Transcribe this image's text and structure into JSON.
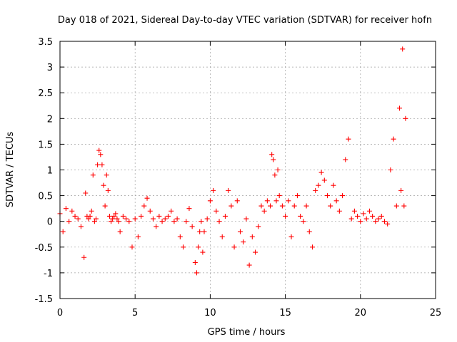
{
  "chart_data": {
    "type": "scatter",
    "title": "Day 018 of 2021, Sidereal Day-to-day VTEC variation (SDTVAR) for receiver hofn",
    "xlabel": "GPS time / hours",
    "ylabel": "SDTVAR / TECUs",
    "xlim": [
      0,
      25
    ],
    "ylim": [
      -1.5,
      3.5
    ],
    "xticks": [
      0,
      5,
      10,
      15,
      20,
      25
    ],
    "xtick_labels": [
      "0",
      "5",
      "10",
      "15",
      "20",
      "25"
    ],
    "yticks": [
      -1.5,
      -1,
      -0.5,
      0,
      0.5,
      1,
      1.5,
      2,
      2.5,
      3,
      3.5
    ],
    "ytick_labels": [
      "-1.5",
      "-1",
      "-0.5",
      "0",
      "0.5",
      "1",
      "1.5",
      "2",
      "2.5",
      "3",
      "3.5"
    ],
    "grid": true,
    "marker": "+",
    "color": "#ff0000",
    "series": [
      {
        "name": "SDTVAR",
        "x": [
          0.0,
          0.2,
          0.4,
          0.6,
          0.8,
          1.0,
          1.2,
          1.4,
          1.6,
          1.7,
          1.8,
          1.9,
          2.0,
          2.1,
          2.2,
          2.3,
          2.4,
          2.5,
          2.6,
          2.7,
          2.8,
          2.9,
          3.0,
          3.1,
          3.2,
          3.3,
          3.4,
          3.5,
          3.6,
          3.7,
          3.8,
          3.9,
          4.0,
          4.2,
          4.4,
          4.6,
          4.8,
          5.0,
          5.2,
          5.4,
          5.6,
          5.8,
          6.0,
          6.2,
          6.4,
          6.6,
          6.8,
          7.0,
          7.2,
          7.4,
          7.6,
          7.8,
          8.0,
          8.2,
          8.4,
          8.6,
          8.8,
          9.0,
          9.1,
          9.2,
          9.3,
          9.4,
          9.5,
          9.6,
          9.8,
          10.0,
          10.2,
          10.4,
          10.6,
          10.8,
          11.0,
          11.2,
          11.4,
          11.6,
          11.8,
          12.0,
          12.2,
          12.4,
          12.6,
          12.8,
          13.0,
          13.2,
          13.4,
          13.6,
          13.8,
          14.0,
          14.1,
          14.2,
          14.3,
          14.4,
          14.5,
          14.6,
          14.8,
          15.0,
          15.2,
          15.4,
          15.6,
          15.8,
          16.0,
          16.2,
          16.4,
          16.6,
          16.8,
          17.0,
          17.2,
          17.4,
          17.6,
          17.8,
          18.0,
          18.2,
          18.4,
          18.6,
          18.8,
          19.0,
          19.2,
          19.4,
          19.6,
          19.8,
          20.0,
          20.2,
          20.4,
          20.6,
          20.8,
          21.0,
          21.2,
          21.4,
          21.6,
          21.8,
          22.0,
          22.2,
          22.4,
          22.6,
          22.7,
          22.8,
          22.9,
          23.0
        ],
        "y": [
          0.15,
          -0.2,
          0.25,
          0.0,
          0.2,
          0.1,
          0.05,
          -0.1,
          -0.7,
          0.55,
          0.1,
          0.05,
          0.1,
          0.2,
          0.9,
          0.0,
          0.05,
          1.1,
          1.38,
          1.3,
          1.1,
          0.7,
          0.3,
          0.9,
          0.6,
          0.1,
          0.0,
          0.05,
          0.1,
          0.15,
          0.05,
          0.0,
          -0.2,
          0.1,
          0.05,
          0.0,
          -0.5,
          0.05,
          -0.3,
          0.1,
          0.3,
          0.45,
          0.2,
          0.05,
          -0.1,
          0.1,
          0.0,
          0.05,
          0.1,
          0.2,
          0.0,
          0.05,
          -0.3,
          -0.5,
          0.0,
          0.25,
          -0.1,
          -0.8,
          -1.0,
          -0.5,
          -0.2,
          0.0,
          -0.6,
          -0.2,
          0.05,
          0.4,
          0.6,
          0.2,
          0.0,
          -0.3,
          0.1,
          0.6,
          0.3,
          -0.5,
          0.4,
          -0.2,
          -0.4,
          0.05,
          -0.85,
          -0.3,
          -0.6,
          -0.1,
          0.3,
          0.2,
          0.4,
          0.3,
          1.3,
          1.2,
          0.9,
          0.4,
          1.0,
          0.5,
          0.3,
          0.1,
          0.4,
          -0.3,
          0.3,
          0.5,
          0.1,
          0.0,
          0.3,
          -0.2,
          -0.5,
          0.6,
          0.7,
          0.95,
          0.8,
          0.5,
          0.3,
          0.7,
          0.4,
          0.2,
          0.5,
          1.2,
          1.6,
          0.05,
          0.2,
          0.1,
          0.0,
          0.15,
          0.05,
          0.2,
          0.1,
          0.0,
          0.05,
          0.1,
          0.0,
          -0.05,
          1.0,
          1.6,
          0.3,
          2.2,
          0.6,
          3.35,
          0.3,
          2.0
        ]
      }
    ]
  }
}
